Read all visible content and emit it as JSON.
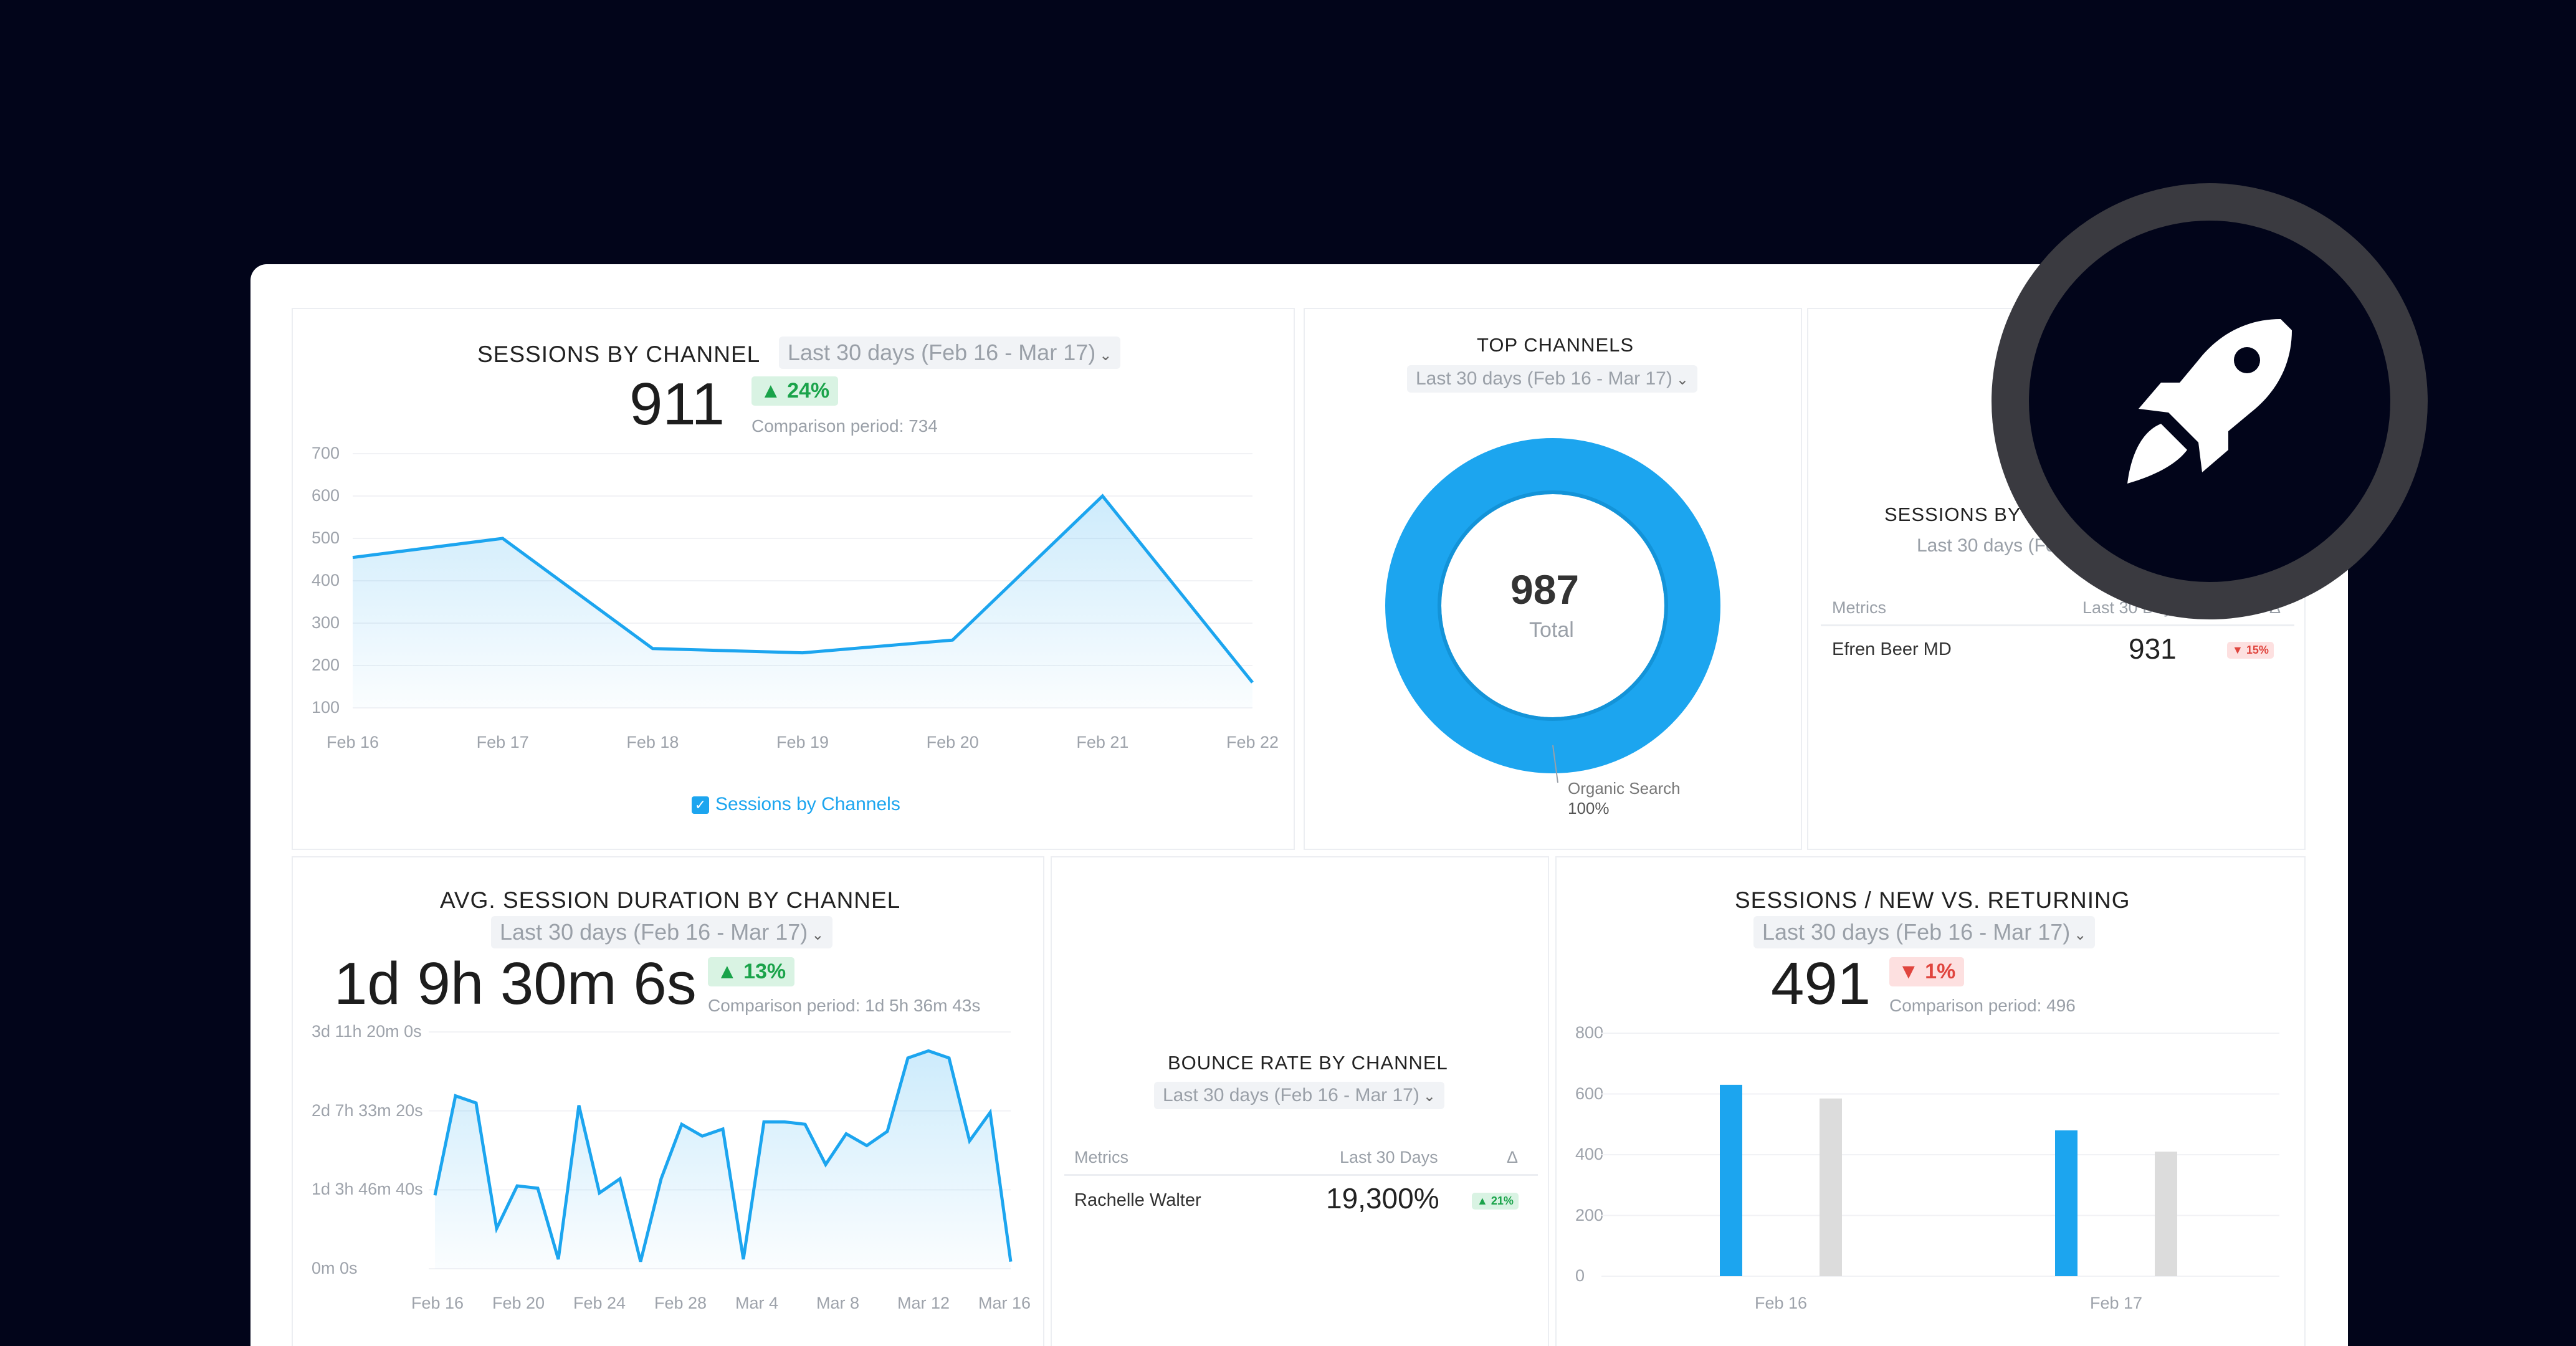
{
  "sessions_by_channel": {
    "title": "SESSIONS BY CHANNEL",
    "period": "Last 30 days (Feb 16 - Mar 17)",
    "value": "911",
    "change": "▲ 24%",
    "comparison": "Comparison period: 734",
    "legend": "Sessions by Channels",
    "y_ticks": [
      "700",
      "600",
      "500",
      "400",
      "300",
      "200",
      "100"
    ],
    "x_ticks": [
      "Feb 16",
      "Feb 17",
      "Feb 18",
      "Feb 19",
      "Feb 20",
      "Feb 21",
      "Feb 22"
    ]
  },
  "top_channels": {
    "title": "TOP CHANNELS",
    "period": "Last 30 days (Feb 16 - Mar 17)",
    "total_value": "987",
    "total_label": "Total",
    "slice_label": "Organic Search",
    "slice_pct": "100%"
  },
  "sessions_by_page": {
    "title": "SESSIONS BY PAGE",
    "period": "Last 30 days (Feb 16",
    "col_metrics": "Metrics",
    "col_period": "Last 30 Days",
    "col_delta": "Δ",
    "row_name": "Efren Beer MD",
    "row_value": "931",
    "row_change": "▼ 15%"
  },
  "avg_session_duration": {
    "title": "AVG. SESSION DURATION BY CHANNEL",
    "period": "Last 30 days (Feb 16 - Mar 17)",
    "value": "1d 9h 30m 6s",
    "change": "▲ 13%",
    "comparison": "Comparison period: 1d 5h 36m 43s",
    "y_ticks": [
      "3d 11h 20m 0s",
      "2d 7h 33m 20s",
      "1d 3h 46m 40s",
      "0m 0s"
    ],
    "x_ticks": [
      "Feb 16",
      "Feb 20",
      "Feb 24",
      "Feb 28",
      "Mar 4",
      "Mar 8",
      "Mar 12",
      "Mar 16"
    ]
  },
  "bounce_rate": {
    "title": "BOUNCE RATE BY CHANNEL",
    "period": "Last 30 days (Feb 16 - Mar 17)",
    "col_metrics": "Metrics",
    "col_period": "Last 30 Days",
    "col_delta": "Δ",
    "row_name": "Rachelle Walter",
    "row_value": "19,300%",
    "row_change": "▲ 21%"
  },
  "new_vs_returning": {
    "title": "SESSIONS / NEW VS. RETURNING",
    "period": "Last 30 days (Feb 16 - Mar 17)",
    "value": "491",
    "change": "▼ 1%",
    "comparison": "Comparison period: 496",
    "y_ticks": [
      "800",
      "600",
      "400",
      "200",
      "0"
    ],
    "x_ticks": [
      "Feb 16",
      "Feb 17"
    ]
  },
  "chart_data": [
    {
      "type": "area",
      "title": "SESSIONS BY CHANNEL",
      "categories": [
        "Feb 16",
        "Feb 17",
        "Feb 18",
        "Feb 19",
        "Feb 20",
        "Feb 21",
        "Feb 22"
      ],
      "series": [
        {
          "name": "Sessions by Channels",
          "values": [
            455,
            500,
            240,
            230,
            260,
            600,
            160
          ]
        }
      ],
      "ylim": [
        100,
        700
      ]
    },
    {
      "type": "pie",
      "title": "TOP CHANNELS",
      "categories": [
        "Organic Search"
      ],
      "values": [
        987
      ]
    },
    {
      "type": "area",
      "title": "AVG. SESSION DURATION BY CHANNEL",
      "xlim": [
        0,
        30
      ],
      "y_units": "fraction of 3d 11h 20m 0s",
      "series": [
        {
          "name": "Avg. Session Duration",
          "values": [
            0.31,
            0.73,
            0.7,
            0.17,
            0.35,
            0.34,
            0.04,
            0.69,
            0.32,
            0.38,
            0.03,
            0.38,
            0.61,
            0.56,
            0.59,
            0.04,
            0.62,
            0.62,
            0.61,
            0.44,
            0.57,
            0.52,
            0.58,
            0.89,
            0.92,
            0.89,
            0.54,
            0.66,
            0.03
          ]
        }
      ],
      "ylim": [
        0,
        1
      ]
    },
    {
      "type": "bar",
      "title": "SESSIONS / NEW VS. RETURNING",
      "categories": [
        "Feb 16",
        "Feb 17"
      ],
      "series": [
        {
          "name": "New",
          "values": [
            630,
            480
          ]
        },
        {
          "name": "Returning",
          "values": [
            585,
            410
          ]
        }
      ],
      "ylim": [
        0,
        800
      ]
    }
  ],
  "colors": {
    "accent": "#1ca5ef",
    "grey_bar": "#dcdcdc",
    "up": "#1aa34a",
    "down": "#e0453e"
  },
  "icons": {
    "rocket": "rocket-icon",
    "dropdown": "chevron-down-icon",
    "checkbox": "checkbox-icon"
  }
}
